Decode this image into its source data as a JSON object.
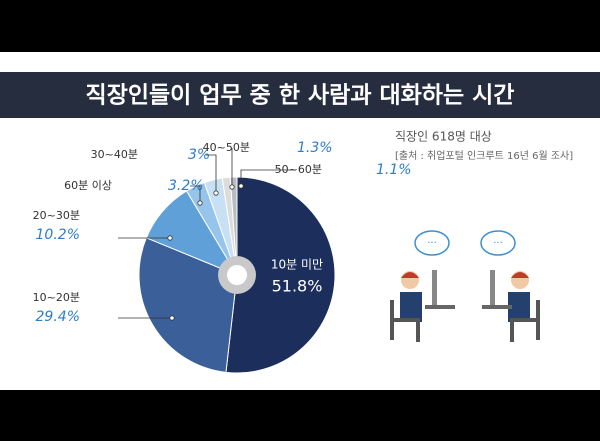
{
  "chart_data": {
    "type": "pie",
    "title": "직장인들이 업무 중 한 사람과 대화하는 시간",
    "note": "직장인 618명 대상",
    "source": "[출처 : 취업포털 인크루트 16년 6월 조사]",
    "categories": [
      "10분 미만",
      "10~20분",
      "20~30분",
      "60분 이상",
      "30~40분",
      "40~50분",
      "50~60분"
    ],
    "values": [
      51.8,
      29.4,
      10.2,
      3.2,
      3,
      1.3,
      1.1
    ],
    "value_labels": [
      "51.8%",
      "29.4%",
      "10.2%",
      "3.2%",
      "3%",
      "1.3%",
      "1.1%"
    ],
    "colors": [
      "#1c2f5c",
      "#3b5f99",
      "#5fa0d8",
      "#97c4ea",
      "#c8e0f3",
      "#dcdcdc",
      "#b9bcc2"
    ]
  }
}
